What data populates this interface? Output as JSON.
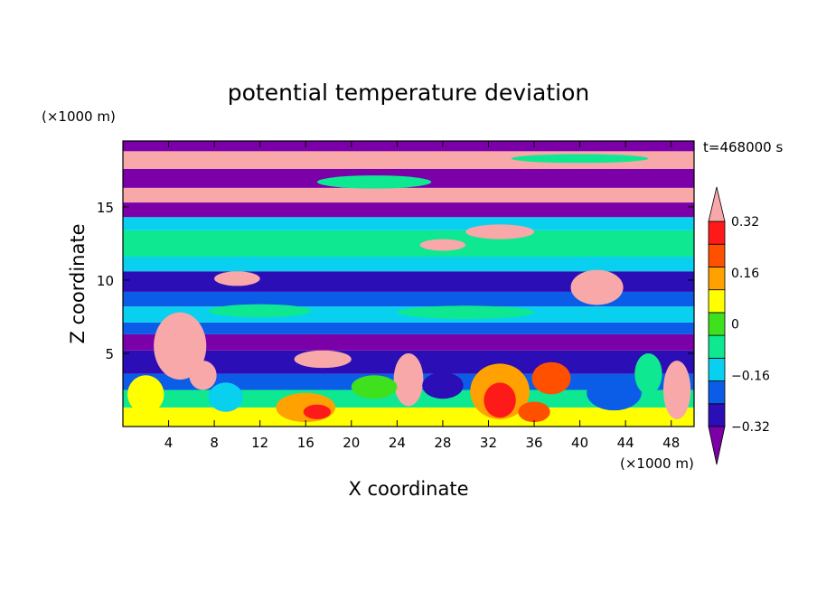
{
  "chart_data": {
    "type": "heatmap",
    "title": "potential temperature deviation",
    "time_label": "t=468000 s",
    "xlabel": "X coordinate",
    "ylabel": "Z coordinate",
    "x_unit": "(×1000 m)",
    "y_unit": "(×1000 m)",
    "xlim": [
      0,
      50
    ],
    "ylim": [
      0,
      19.5
    ],
    "x_ticks": [
      4,
      8,
      12,
      16,
      20,
      24,
      28,
      32,
      36,
      40,
      44,
      48
    ],
    "y_ticks": [
      5,
      10,
      15
    ],
    "colorbar": {
      "levels": [
        -0.4,
        -0.32,
        -0.24,
        -0.16,
        -0.08,
        0,
        0.08,
        0.16,
        0.24,
        0.32,
        0.4
      ],
      "tick_labels": [
        "0.32",
        "0.16",
        "0",
        "−0.16",
        "−0.32"
      ],
      "tick_values": [
        0.32,
        0.16,
        0,
        -0.16,
        -0.32
      ],
      "colors": [
        "#7b00a8",
        "#2b0eb5",
        "#0b5de8",
        "#0ad0f0",
        "#0ee890",
        "#3fe01e",
        "#ffff00",
        "#ffa100",
        "#ff5000",
        "#ff1a1a",
        "#f8a8a8"
      ],
      "extend": "both"
    },
    "bands": [
      {
        "z": [
          0.0,
          1.3
        ],
        "level": 6
      },
      {
        "z": [
          1.3,
          2.5
        ],
        "level": 4
      },
      {
        "z": [
          2.5,
          3.6
        ],
        "level": 2
      },
      {
        "z": [
          3.6,
          5.2
        ],
        "level": 1
      },
      {
        "z": [
          5.2,
          6.3
        ],
        "level": 0
      },
      {
        "z": [
          6.3,
          7.1
        ],
        "level": 2
      },
      {
        "z": [
          7.1,
          8.2
        ],
        "level": 3
      },
      {
        "z": [
          8.2,
          9.2
        ],
        "level": 2
      },
      {
        "z": [
          9.2,
          10.6
        ],
        "level": 1
      },
      {
        "z": [
          10.6,
          11.6
        ],
        "level": 3
      },
      {
        "z": [
          11.6,
          13.4
        ],
        "level": 4
      },
      {
        "z": [
          13.4,
          14.3
        ],
        "level": 3
      },
      {
        "z": [
          14.3,
          15.3
        ],
        "level": 0
      },
      {
        "z": [
          15.3,
          16.3
        ],
        "level": 10
      },
      {
        "z": [
          16.3,
          17.6
        ],
        "level": 0
      },
      {
        "z": [
          17.6,
          18.8
        ],
        "level": 10
      },
      {
        "z": [
          18.8,
          19.5
        ],
        "level": 0
      }
    ],
    "blobs": [
      {
        "x": 5,
        "z": 5.5,
        "rx": 2.3,
        "rz": 2.3,
        "level": 10
      },
      {
        "x": 7,
        "z": 3.5,
        "rx": 1.2,
        "rz": 1.0,
        "level": 10
      },
      {
        "x": 17.5,
        "z": 4.6,
        "rx": 2.5,
        "rz": 0.6,
        "level": 10
      },
      {
        "x": 25,
        "z": 3.2,
        "rx": 1.3,
        "rz": 1.8,
        "level": 10
      },
      {
        "x": 41.5,
        "z": 9.5,
        "rx": 2.3,
        "rz": 1.2,
        "level": 10
      },
      {
        "x": 10,
        "z": 10.1,
        "rx": 2.0,
        "rz": 0.5,
        "level": 10
      },
      {
        "x": 28,
        "z": 12.4,
        "rx": 2.0,
        "rz": 0.4,
        "level": 10
      },
      {
        "x": 33,
        "z": 13.3,
        "rx": 3.0,
        "rz": 0.5,
        "level": 10
      },
      {
        "x": 48.5,
        "z": 2.5,
        "rx": 1.2,
        "rz": 2.0,
        "level": 10
      },
      {
        "x": 16,
        "z": 1.3,
        "rx": 2.6,
        "rz": 1.0,
        "level": 7
      },
      {
        "x": 17,
        "z": 1.0,
        "rx": 1.2,
        "rz": 0.5,
        "level": 9
      },
      {
        "x": 33,
        "z": 2.4,
        "rx": 2.6,
        "rz": 1.9,
        "level": 7
      },
      {
        "x": 33,
        "z": 1.8,
        "rx": 1.4,
        "rz": 1.2,
        "level": 9
      },
      {
        "x": 37.5,
        "z": 3.3,
        "rx": 1.7,
        "rz": 1.1,
        "level": 8
      },
      {
        "x": 36,
        "z": 1.0,
        "rx": 1.4,
        "rz": 0.7,
        "level": 8
      },
      {
        "x": 22,
        "z": 2.7,
        "rx": 2.0,
        "rz": 0.8,
        "level": 5
      },
      {
        "x": 28,
        "z": 2.8,
        "rx": 1.8,
        "rz": 0.9,
        "level": 1
      },
      {
        "x": 43,
        "z": 2.3,
        "rx": 2.4,
        "rz": 1.2,
        "level": 2
      },
      {
        "x": 2,
        "z": 2.2,
        "rx": 1.6,
        "rz": 1.3,
        "level": 6
      },
      {
        "x": 9,
        "z": 2.0,
        "rx": 1.5,
        "rz": 1.0,
        "level": 3
      },
      {
        "x": 46,
        "z": 3.6,
        "rx": 1.2,
        "rz": 1.4,
        "level": 4
      },
      {
        "x": 12,
        "z": 7.9,
        "rx": 4.5,
        "rz": 0.45,
        "level": 4
      },
      {
        "x": 30,
        "z": 7.8,
        "rx": 6.0,
        "rz": 0.45,
        "level": 4
      },
      {
        "x": 22,
        "z": 16.7,
        "rx": 5.0,
        "rz": 0.45,
        "level": 4
      },
      {
        "x": 40,
        "z": 18.3,
        "rx": 6.0,
        "rz": 0.3,
        "level": 4
      }
    ]
  }
}
